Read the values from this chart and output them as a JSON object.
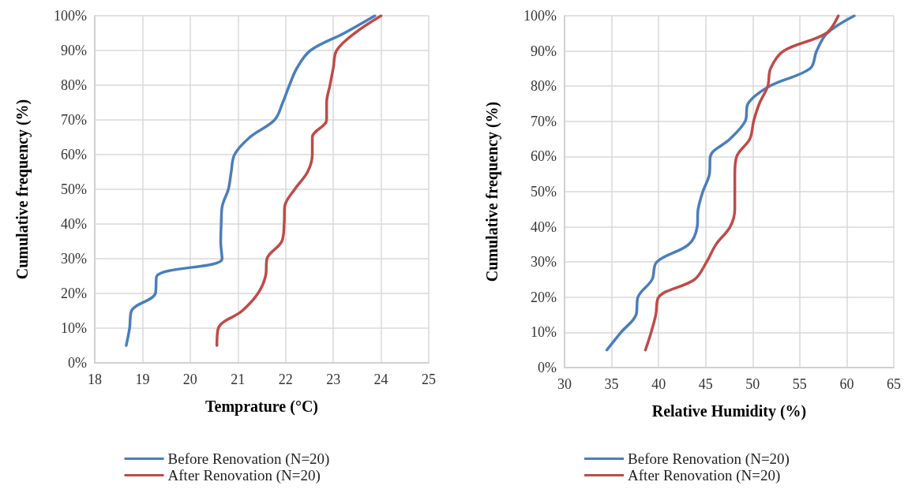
{
  "chart_data": [
    {
      "type": "line",
      "xlabel": "Temprature (°C)",
      "ylabel": "Cumulative frequency (%)",
      "xlim": [
        18,
        25
      ],
      "xticks": [
        18,
        19,
        20,
        21,
        22,
        23,
        24,
        25
      ],
      "ylim": [
        0,
        100
      ],
      "yticks": [
        {
          "value": 0,
          "label": "0%"
        },
        {
          "value": 10,
          "label": "10%"
        },
        {
          "value": 20,
          "label": "20%"
        },
        {
          "value": 30,
          "label": "30%"
        },
        {
          "value": 40,
          "label": "40%"
        },
        {
          "value": 50,
          "label": "50%"
        },
        {
          "value": 60,
          "label": "60%"
        },
        {
          "value": 70,
          "label": "70%"
        },
        {
          "value": 80,
          "label": "80%"
        },
        {
          "value": 90,
          "label": "90%"
        },
        {
          "value": 100,
          "label": "100%"
        }
      ],
      "grid": true,
      "legend": "bottom",
      "marker": "none",
      "line_style": "solid",
      "series": [
        {
          "name": "Before Renovation (N=20)",
          "color": "#4a7ebb",
          "x": [
            18.66,
            18.73,
            18.77,
            19.27,
            19.3,
            20.67,
            20.64,
            20.65,
            20.67,
            20.8,
            20.86,
            20.93,
            21.25,
            21.77,
            21.94,
            22.08,
            22.24,
            22.52,
            23.23,
            23.87
          ],
          "values": [
            5,
            10,
            15,
            20,
            25,
            30,
            35,
            40,
            45,
            50,
            55,
            60,
            65,
            70,
            75,
            80,
            85,
            90,
            95,
            100
          ]
        },
        {
          "name": "After Renovation (N=20)",
          "color": "#be4b48",
          "x": [
            20.56,
            20.59,
            21.09,
            21.42,
            21.58,
            21.61,
            21.92,
            21.97,
            21.98,
            22.19,
            22.46,
            22.56,
            22.56,
            22.86,
            22.86,
            22.93,
            23.0,
            23.07,
            23.45,
            24.0
          ],
          "values": [
            5,
            10,
            15,
            20,
            25,
            30,
            35,
            40,
            45,
            50,
            55,
            60,
            65,
            70,
            75,
            80,
            85,
            90,
            95,
            100
          ]
        }
      ]
    },
    {
      "type": "line",
      "xlabel": "Relative Humidity (%)",
      "ylabel": "Cumulative frequency (%)",
      "xlim": [
        30,
        65
      ],
      "xticks": [
        30,
        35,
        40,
        45,
        50,
        55,
        60,
        65
      ],
      "ylim": [
        0,
        100
      ],
      "yticks": [
        {
          "value": 0,
          "label": "0%"
        },
        {
          "value": 10,
          "label": "10%"
        },
        {
          "value": 20,
          "label": "20%"
        },
        {
          "value": 30,
          "label": "30%"
        },
        {
          "value": 40,
          "label": "40%"
        },
        {
          "value": 50,
          "label": "50%"
        },
        {
          "value": 60,
          "label": "60%"
        },
        {
          "value": 70,
          "label": "70%"
        },
        {
          "value": 80,
          "label": "80%"
        },
        {
          "value": 90,
          "label": "90%"
        },
        {
          "value": 100,
          "label": "100%"
        }
      ],
      "grid": true,
      "legend": "bottom",
      "marker": "none",
      "line_style": "solid",
      "series": [
        {
          "name": "Before Renovation (N=20)",
          "color": "#4a7ebb",
          "x": [
            34.5,
            36.0,
            37.6,
            37.8,
            39.3,
            39.8,
            43.2,
            44.1,
            44.2,
            44.7,
            45.4,
            45.5,
            47.6,
            49.2,
            49.5,
            51.8,
            56.1,
            56.8,
            57.9,
            60.8
          ],
          "values": [
            5,
            10,
            15,
            20,
            25,
            30,
            35,
            40,
            45,
            50,
            55,
            60,
            65,
            70,
            75,
            80,
            85,
            90,
            95,
            100
          ]
        },
        {
          "name": "After Renovation (N=20)",
          "color": "#be4b48",
          "x": [
            38.6,
            39.2,
            39.7,
            40.0,
            43.8,
            45.1,
            46.1,
            47.6,
            48.1,
            48.1,
            48.1,
            48.3,
            49.7,
            50.1,
            50.7,
            51.6,
            51.9,
            53.3,
            57.8,
            59.1
          ],
          "values": [
            5,
            10,
            15,
            20,
            25,
            30,
            35,
            40,
            45,
            50,
            55,
            60,
            65,
            70,
            75,
            80,
            85,
            90,
            95,
            100
          ]
        }
      ]
    }
  ]
}
